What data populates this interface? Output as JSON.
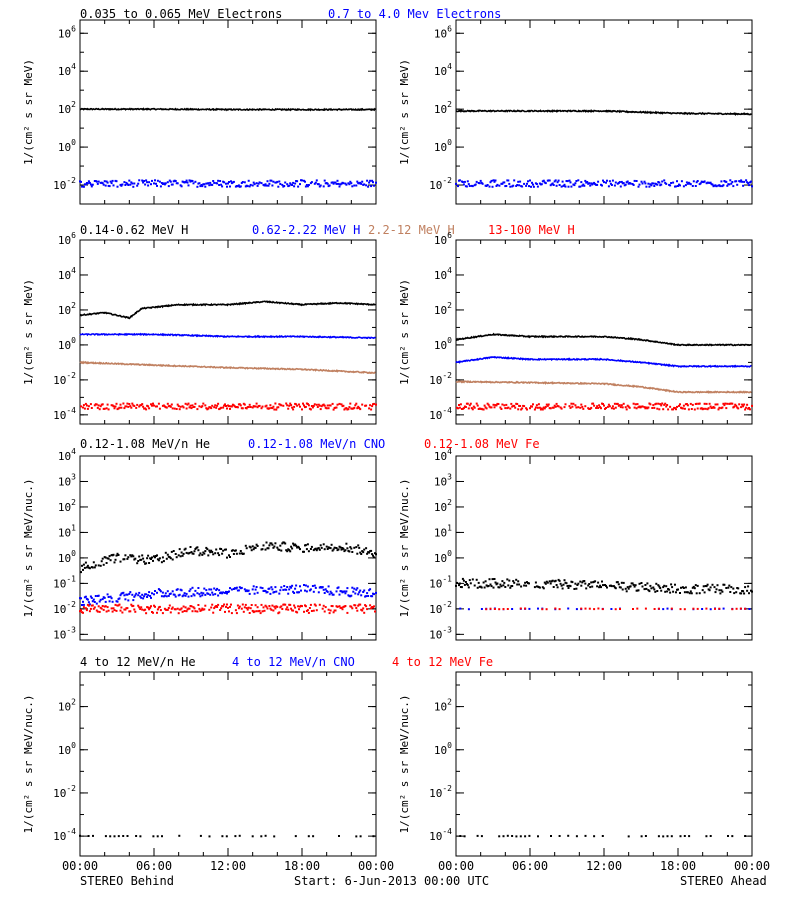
{
  "colors": {
    "black": "#000000",
    "blue": "#0000ff",
    "tan": "#c08060",
    "red": "#ff0000"
  },
  "footer": {
    "left": "STEREO Behind",
    "center": "Start:  6-Jun-2013 00:00 UTC",
    "right": "STEREO Ahead"
  },
  "chart_data": [
    {
      "type": "scatter",
      "row": 1,
      "log_scale": true,
      "grid": false,
      "row_title": [
        {
          "text": "0.035 to 0.065 MeV Electrons",
          "color": "#000000"
        },
        {
          "text": "0.7 to 4.0 Mev Electrons",
          "color": "#0000ff"
        }
      ],
      "ylabel": "1/(cm² s sr MeV)",
      "yticks": [
        {
          "mantissa": "10",
          "exp": "6",
          "value": 1000000.0
        },
        {
          "mantissa": "10",
          "exp": "4",
          "value": 10000.0
        },
        {
          "mantissa": "10",
          "exp": "2",
          "value": 100.0
        },
        {
          "mantissa": "10",
          "exp": "0",
          "value": 1
        },
        {
          "mantissa": "10",
          "exp": "-2",
          "value": 0.01
        }
      ],
      "ylim": [
        0.001,
        5000000
      ],
      "x_hours": [
        0,
        24
      ],
      "panels": [
        {
          "spacecraft": "STEREO Behind",
          "series": [
            {
              "name": "0.035 to 0.065 MeV Electrons",
              "color": "#000000",
              "style": "line",
              "x": [
                0,
                6,
                12,
                18,
                24
              ],
              "y": [
                100,
                100,
                95,
                95,
                95
              ]
            },
            {
              "name": "0.7 to 4.0 Mev Electrons",
              "color": "#0000ff",
              "style": "dots",
              "x": [
                0,
                24
              ],
              "y": [
                0.012,
                0.012
              ]
            }
          ]
        },
        {
          "spacecraft": "STEREO Ahead",
          "series": [
            {
              "name": "0.035 to 0.065 MeV Electrons",
              "color": "#000000",
              "style": "line",
              "x": [
                0,
                6,
                12,
                18,
                24
              ],
              "y": [
                80,
                80,
                80,
                60,
                55
              ]
            },
            {
              "name": "0.7 to 4.0 Mev Electrons",
              "color": "#0000ff",
              "style": "dots",
              "x": [
                0,
                24
              ],
              "y": [
                0.012,
                0.012
              ]
            }
          ]
        }
      ]
    },
    {
      "type": "scatter",
      "row": 2,
      "log_scale": true,
      "grid": false,
      "row_title": [
        {
          "text": "0.14-0.62 MeV H",
          "color": "#000000"
        },
        {
          "text": "0.62-2.22 MeV H",
          "color": "#0000ff"
        },
        {
          "text": "2.2-12 MeV H",
          "color": "#c08060"
        },
        {
          "text": "13-100 MeV H",
          "color": "#ff0000"
        }
      ],
      "ylabel": "1/(cm² s sr MeV)",
      "yticks": [
        {
          "mantissa": "10",
          "exp": "6",
          "value": 1000000.0
        },
        {
          "mantissa": "10",
          "exp": "4",
          "value": 10000.0
        },
        {
          "mantissa": "10",
          "exp": "2",
          "value": 100.0
        },
        {
          "mantissa": "10",
          "exp": "0",
          "value": 1
        },
        {
          "mantissa": "10",
          "exp": "-2",
          "value": 0.01
        },
        {
          "mantissa": "10",
          "exp": "-4",
          "value": 0.0001
        }
      ],
      "ylim": [
        3e-05,
        1000000
      ],
      "x_hours": [
        0,
        24
      ],
      "panels": [
        {
          "spacecraft": "STEREO Behind",
          "series": [
            {
              "name": "0.14-0.62 MeV H",
              "color": "#000000",
              "style": "line",
              "x": [
                0,
                2,
                4,
                5,
                8,
                12,
                15,
                18,
                21,
                24
              ],
              "y": [
                50,
                70,
                35,
                120,
                200,
                200,
                300,
                200,
                250,
                200
              ]
            },
            {
              "name": "0.62-2.22 MeV H",
              "color": "#0000ff",
              "style": "line",
              "x": [
                0,
                6,
                12,
                18,
                24
              ],
              "y": [
                4,
                4,
                3,
                3,
                2.5
              ]
            },
            {
              "name": "2.2-12 MeV H",
              "color": "#c08060",
              "style": "line",
              "x": [
                0,
                6,
                12,
                18,
                24
              ],
              "y": [
                0.1,
                0.07,
                0.05,
                0.04,
                0.025
              ]
            },
            {
              "name": "13-100 MeV H",
              "color": "#ff0000",
              "style": "dots",
              "x": [
                0,
                24
              ],
              "y": [
                0.0003,
                0.0003
              ]
            }
          ]
        },
        {
          "spacecraft": "STEREO Ahead",
          "series": [
            {
              "name": "0.14-0.62 MeV H",
              "color": "#000000",
              "style": "line",
              "x": [
                0,
                3,
                6,
                12,
                15,
                18,
                24
              ],
              "y": [
                2,
                4,
                3,
                3,
                2,
                1,
                1
              ]
            },
            {
              "name": "0.62-2.22 MeV H",
              "color": "#0000ff",
              "style": "line",
              "x": [
                0,
                3,
                6,
                12,
                15,
                18,
                24
              ],
              "y": [
                0.1,
                0.2,
                0.15,
                0.15,
                0.1,
                0.06,
                0.06
              ]
            },
            {
              "name": "2.2-12 MeV H",
              "color": "#c08060",
              "style": "line",
              "x": [
                0,
                6,
                12,
                15,
                18,
                24
              ],
              "y": [
                0.008,
                0.007,
                0.006,
                0.004,
                0.002,
                0.002
              ]
            },
            {
              "name": "13-100 MeV H",
              "color": "#ff0000",
              "style": "dots",
              "x": [
                0,
                24
              ],
              "y": [
                0.0003,
                0.0003
              ]
            }
          ]
        }
      ]
    },
    {
      "type": "scatter",
      "row": 3,
      "log_scale": true,
      "grid": false,
      "row_title": [
        {
          "text": "0.12-1.08 MeV/n He",
          "color": "#000000"
        },
        {
          "text": "0.12-1.08 MeV/n CNO",
          "color": "#0000ff"
        },
        {
          "text": "0.12-1.08 MeV Fe",
          "color": "#ff0000"
        }
      ],
      "ylabel": "1/(cm² s sr MeV/nuc.)",
      "yticks": [
        {
          "mantissa": "10",
          "exp": "4",
          "value": 10000.0
        },
        {
          "mantissa": "10",
          "exp": "3",
          "value": 1000.0
        },
        {
          "mantissa": "10",
          "exp": "2",
          "value": 100.0
        },
        {
          "mantissa": "10",
          "exp": "1",
          "value": 10
        },
        {
          "mantissa": "10",
          "exp": "0",
          "value": 1
        },
        {
          "mantissa": "10",
          "exp": "-1",
          "value": 0.1
        },
        {
          "mantissa": "10",
          "exp": "-2",
          "value": 0.01
        },
        {
          "mantissa": "10",
          "exp": "-3",
          "value": 0.001
        }
      ],
      "ylim": [
        0.0006,
        10000
      ],
      "x_hours": [
        0,
        24
      ],
      "panels": [
        {
          "spacecraft": "STEREO Behind",
          "series": [
            {
              "name": "0.12-1.08 MeV/n He",
              "color": "#000000",
              "style": "dots",
              "x": [
                0,
                3,
                6,
                9,
                12,
                15,
                18,
                21,
                24
              ],
              "y": [
                0.4,
                1,
                0.8,
                2,
                1.5,
                3,
                2.5,
                3,
                1.5
              ]
            },
            {
              "name": "0.12-1.08 MeV/n CNO",
              "color": "#0000ff",
              "style": "dots",
              "x": [
                0,
                6,
                12,
                18,
                24
              ],
              "y": [
                0.02,
                0.04,
                0.05,
                0.06,
                0.04
              ]
            },
            {
              "name": "0.12-1.08 MeV Fe",
              "color": "#ff0000",
              "style": "dots",
              "x": [
                0,
                24
              ],
              "y": [
                0.01,
                0.01
              ]
            }
          ]
        },
        {
          "spacecraft": "STEREO Ahead",
          "series": [
            {
              "name": "0.12-1.08 MeV/n He",
              "color": "#000000",
              "style": "dots",
              "x": [
                0,
                6,
                12,
                18,
                24
              ],
              "y": [
                0.1,
                0.1,
                0.08,
                0.06,
                0.06
              ]
            },
            {
              "name": "0.12-1.08 MeV/n CNO",
              "color": "#0000ff",
              "style": "sparse",
              "x": [
                0,
                6,
                12,
                18,
                24
              ],
              "y": [
                0.01,
                0.01,
                0.01,
                0.01,
                0.01
              ]
            },
            {
              "name": "0.12-1.08 MeV Fe",
              "color": "#ff0000",
              "style": "sparse",
              "x": [
                0,
                12,
                18
              ],
              "y": [
                0.01,
                0.01,
                0.01
              ]
            }
          ]
        }
      ]
    },
    {
      "type": "scatter",
      "row": 4,
      "log_scale": true,
      "grid": false,
      "row_title": [
        {
          "text": "4 to 12 MeV/n He",
          "color": "#000000"
        },
        {
          "text": "4 to 12 MeV/n CNO",
          "color": "#0000ff"
        },
        {
          "text": "4 to 12 MeV Fe",
          "color": "#ff0000"
        }
      ],
      "ylabel": "1/(cm² s sr MeV/nuc.)",
      "yticks": [
        {
          "mantissa": "10",
          "exp": "2",
          "value": 100
        },
        {
          "mantissa": "10",
          "exp": "0",
          "value": 1
        },
        {
          "mantissa": "10",
          "exp": "-2",
          "value": 0.01
        },
        {
          "mantissa": "10",
          "exp": "-4",
          "value": 0.0001
        }
      ],
      "ylim": [
        1.2e-05,
        4000
      ],
      "x_hours": [
        0,
        24
      ],
      "panels": [
        {
          "spacecraft": "STEREO Behind",
          "series": [
            {
              "name": "4 to 12 MeV/n He",
              "color": "#000000",
              "style": "sparse",
              "x": [
                0,
                24
              ],
              "y": [
                0.0001,
                0.0001
              ]
            }
          ]
        },
        {
          "spacecraft": "STEREO Ahead",
          "series": [
            {
              "name": "4 to 12 MeV/n He",
              "color": "#000000",
              "style": "sparse",
              "x": [
                0,
                24
              ],
              "y": [
                0.0001,
                0.0001
              ]
            }
          ]
        }
      ]
    }
  ],
  "xticks": [
    "00:00",
    "06:00",
    "12:00",
    "18:00",
    "00:00"
  ]
}
